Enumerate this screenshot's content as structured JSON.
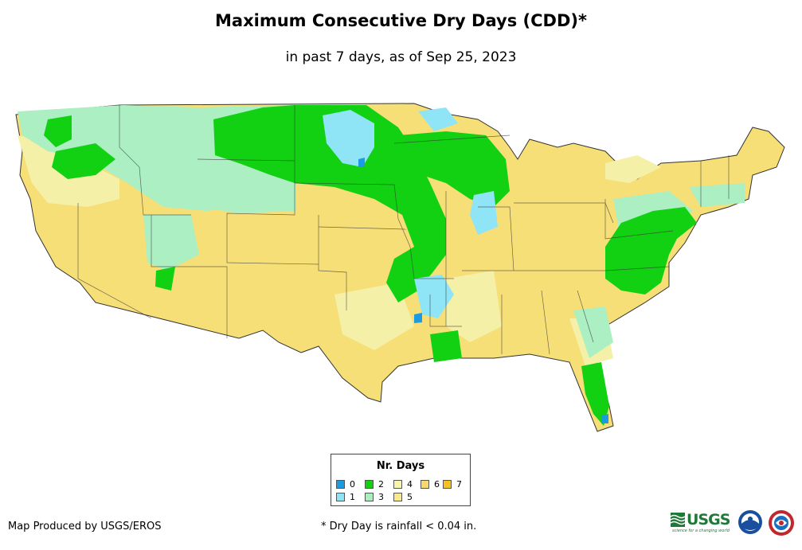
{
  "title": "Maximum Consecutive Dry Days (CDD)*",
  "subtitle": "in past 7 days, as of Sep 25, 2023",
  "legend": {
    "title": "Nr. Days",
    "items": [
      {
        "label": "0",
        "color": "#1e9be0"
      },
      {
        "label": "1",
        "color": "#8ee4f5"
      },
      {
        "label": "2",
        "color": "#10d010"
      },
      {
        "label": "3",
        "color": "#a8f0c0"
      },
      {
        "label": "4",
        "color": "#f5f5b0"
      },
      {
        "label": "5",
        "color": "#f8e890"
      },
      {
        "label": "6",
        "color": "#f8d870"
      },
      {
        "label": "7",
        "color": "#f8c020"
      }
    ]
  },
  "footer": {
    "producer": "Map Produced by USGS/EROS",
    "note": "* Dry Day is rainfall < 0.04 in."
  },
  "logos": {
    "usgs": "USGS",
    "usgs_tagline": "science for a changing world",
    "noaa": "NOAA",
    "nws": "NWS"
  }
}
